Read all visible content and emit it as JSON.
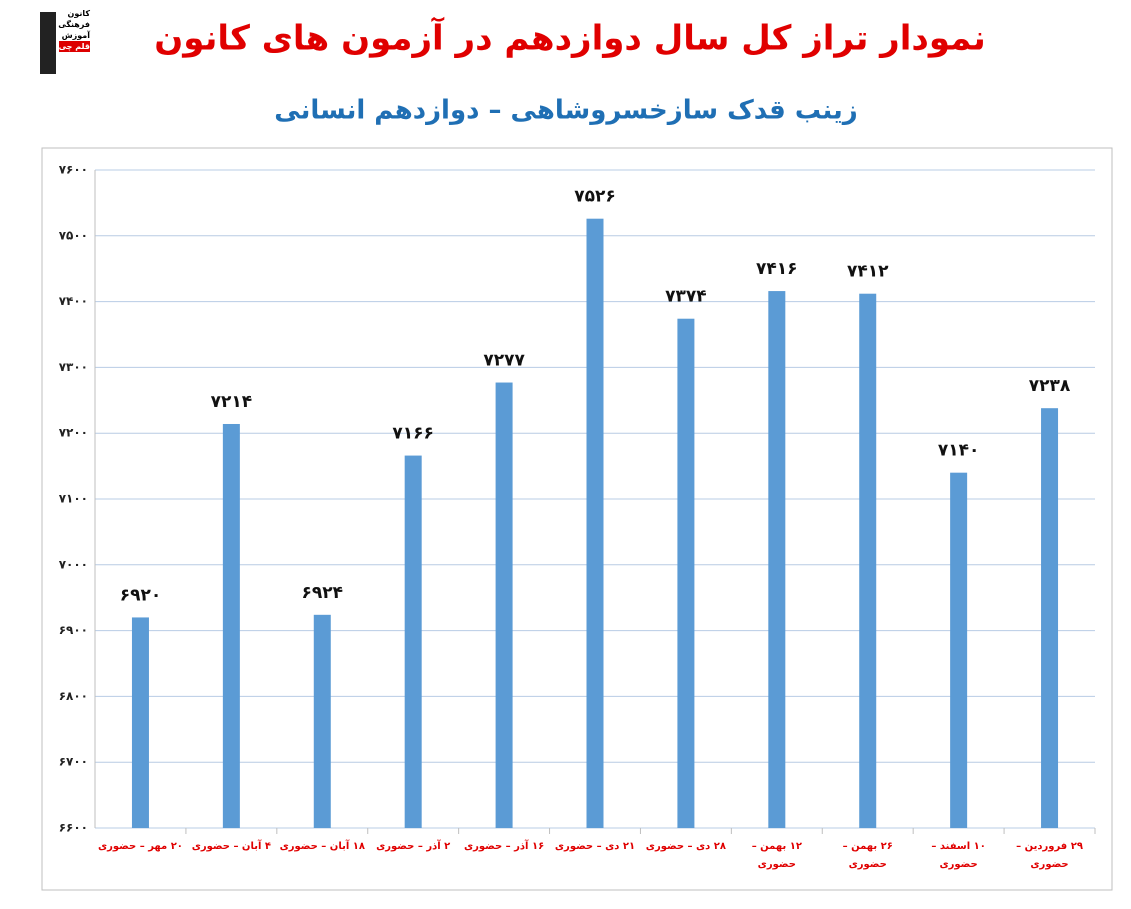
{
  "logo": {
    "lines": [
      "کانون",
      "فرهنگی",
      "آموزش",
      "قلم چی"
    ]
  },
  "chart_data": {
    "type": "bar",
    "title": "نمودار تراز کل سال دوازدهم در آزمون های کانون",
    "subtitle": "زینب قدک سازخسروشاهی – دوازدهم انسانی",
    "categories": [
      "۲۰ مهر – حضوری",
      "۴ آبان – حضوری",
      "۱۸ آبان – حضوری",
      "۲ آذر – حضوری",
      "۱۶ آذر – حضوری",
      "۲۱ دی – حضوری",
      "۲۸ دی – حضوری",
      "۱۲ بهمن – حضوری",
      "۲۶ بهمن – حضوری",
      "۱۰ اسفند – حضوری",
      "۲۹ فروردین – حضوری"
    ],
    "values": [
      6920,
      7214,
      6924,
      7166,
      7277,
      7526,
      7374,
      7416,
      7412,
      7140,
      7238
    ],
    "value_labels": [
      "۶۹۲۰",
      "۷۲۱۴",
      "۶۹۲۴",
      "۷۱۶۶",
      "۷۲۷۷",
      "۷۵۲۶",
      "۷۳۷۴",
      "۷۴۱۶",
      "۷۴۱۲",
      "۷۱۴۰",
      "۷۲۳۸"
    ],
    "color": "#5b9bd5",
    "ylim": [
      6600,
      7600
    ],
    "yticks": [
      {
        "value": 6600,
        "label": "۶۶۰۰"
      },
      {
        "value": 6700,
        "label": "۶۷۰۰"
      },
      {
        "value": 6800,
        "label": "۶۸۰۰"
      },
      {
        "value": 6900,
        "label": "۶۹۰۰"
      },
      {
        "value": 7000,
        "label": "۷۰۰۰"
      },
      {
        "value": 7100,
        "label": "۷۱۰۰"
      },
      {
        "value": 7200,
        "label": "۷۲۰۰"
      },
      {
        "value": 7300,
        "label": "۷۳۰۰"
      },
      {
        "value": 7400,
        "label": "۷۴۰۰"
      },
      {
        "value": 7500,
        "label": "۷۵۰۰"
      },
      {
        "value": 7600,
        "label": "۷۶۰۰"
      }
    ],
    "grid": true
  }
}
